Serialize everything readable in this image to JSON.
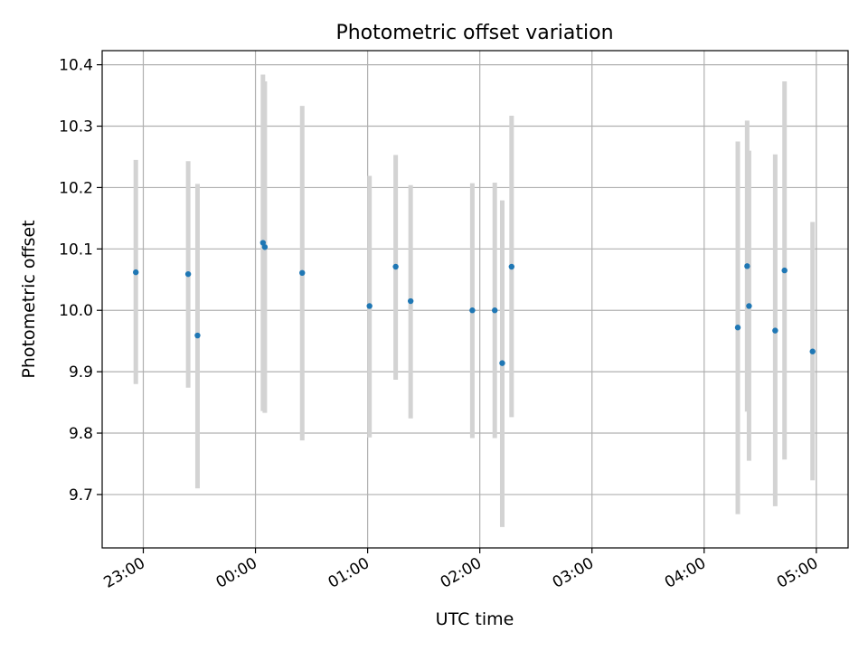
{
  "chart_data": {
    "type": "scatter",
    "title": "Photometric offset variation",
    "xlabel": "UTC time",
    "ylabel": "Photometric offset",
    "x_axis_kind": "time",
    "xlim": [
      "22:38",
      "05:17"
    ],
    "ylim": [
      9.613,
      10.423
    ],
    "grid": true,
    "x_ticks": [
      "23:00",
      "00:00",
      "01:00",
      "02:00",
      "03:00",
      "04:00",
      "05:00"
    ],
    "y_ticks": [
      "9.7",
      "9.8",
      "9.9",
      "10.0",
      "10.1",
      "10.2",
      "10.3",
      "10.4"
    ],
    "colors": {
      "point": "#1f77b4",
      "errorbar": "#d3d3d3",
      "grid": "#b0b0b0"
    },
    "points": [
      {
        "x": "22:56",
        "y": 10.062,
        "y_low": 9.88,
        "y_high": 10.245
      },
      {
        "x": "23:24",
        "y": 10.059,
        "y_low": 9.874,
        "y_high": 10.243
      },
      {
        "x": "23:29",
        "y": 9.959,
        "y_low": 9.71,
        "y_high": 10.206
      },
      {
        "x": "00:04",
        "y": 10.11,
        "y_low": 9.836,
        "y_high": 10.384
      },
      {
        "x": "00:05",
        "y": 10.103,
        "y_low": 9.833,
        "y_high": 10.373
      },
      {
        "x": "00:25",
        "y": 10.061,
        "y_low": 9.788,
        "y_high": 10.333
      },
      {
        "x": "01:01",
        "y": 10.007,
        "y_low": 9.793,
        "y_high": 10.219
      },
      {
        "x": "01:15",
        "y": 10.071,
        "y_low": 9.887,
        "y_high": 10.253
      },
      {
        "x": "01:23",
        "y": 10.015,
        "y_low": 9.824,
        "y_high": 10.204
      },
      {
        "x": "01:56",
        "y": 10.0,
        "y_low": 9.792,
        "y_high": 10.207
      },
      {
        "x": "02:08",
        "y": 10.0,
        "y_low": 9.792,
        "y_high": 10.208
      },
      {
        "x": "02:12",
        "y": 9.914,
        "y_low": 9.647,
        "y_high": 10.179
      },
      {
        "x": "02:17",
        "y": 10.071,
        "y_low": 9.826,
        "y_high": 10.317
      },
      {
        "x": "04:18",
        "y": 9.972,
        "y_low": 9.668,
        "y_high": 10.275
      },
      {
        "x": "04:23",
        "y": 10.072,
        "y_low": 9.835,
        "y_high": 10.309
      },
      {
        "x": "04:24",
        "y": 10.007,
        "y_low": 9.755,
        "y_high": 10.26
      },
      {
        "x": "04:38",
        "y": 9.967,
        "y_low": 9.681,
        "y_high": 10.254
      },
      {
        "x": "04:43",
        "y": 10.065,
        "y_low": 9.757,
        "y_high": 10.373
      },
      {
        "x": "04:58",
        "y": 9.933,
        "y_low": 9.723,
        "y_high": 10.144
      }
    ]
  }
}
